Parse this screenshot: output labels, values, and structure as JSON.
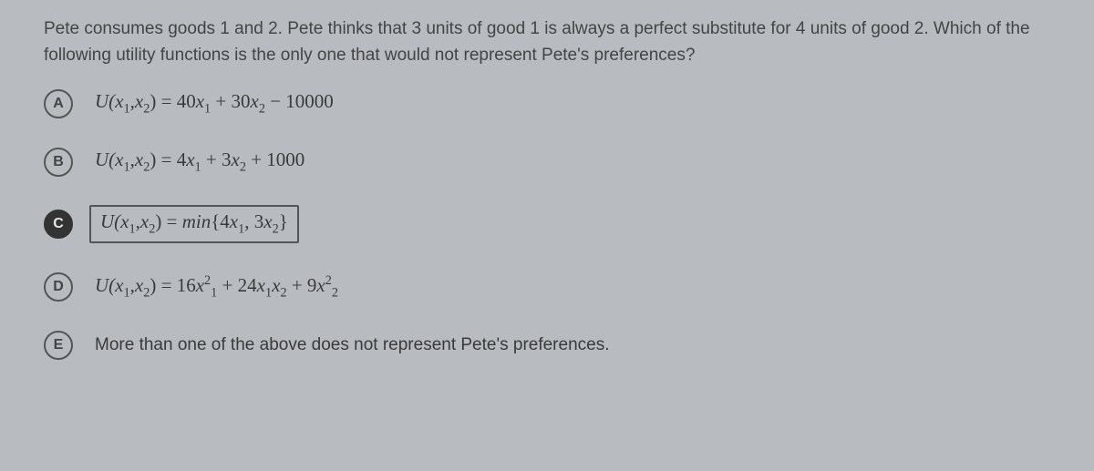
{
  "question": "Pete consumes goods 1 and 2. Pete thinks that 3 units of good 1 is always a perfect substitute for 4 units of good 2. Which of the following utility functions is the only one that would not represent Pete's preferences?",
  "options": {
    "a": {
      "letter": "A",
      "selected": false,
      "boxed": false,
      "func_lhs": "U(x",
      "eq": ") = ",
      "coef1": "40",
      "sign1": "+ ",
      "coef2": "30",
      "tail": " − 10000",
      "sub1": "1",
      "sub2": "2",
      "x": "x"
    },
    "b": {
      "letter": "B",
      "selected": false,
      "boxed": false,
      "func_lhs": "U(x",
      "eq": ") = ",
      "coef1": "4",
      "sign1": "+ ",
      "coef2": "3",
      "tail": " + 1000",
      "sub1": "1",
      "sub2": "2",
      "x": "x"
    },
    "c": {
      "letter": "C",
      "selected": true,
      "boxed": true,
      "func_lhs": "U(x",
      "eq": ") = ",
      "min": "min",
      "lbrace": "{",
      "coef1": "4",
      "comma": ", ",
      "coef2": "3",
      "rbrace": "}",
      "sub1": "1",
      "sub2": "2",
      "x": "x"
    },
    "d": {
      "letter": "D",
      "selected": false,
      "boxed": false,
      "func_lhs": "U(x",
      "eq": ") = ",
      "coef1": "16",
      "sq1": "2",
      "sign1": "+ ",
      "coef2": "24",
      "sign2": "+ ",
      "coef3": "9",
      "sq2": "2",
      "sub1": "1",
      "sub2": "2",
      "x": "x"
    },
    "e": {
      "letter": "E",
      "selected": false,
      "boxed": false,
      "text": "More than one of the above does not represent Pete's preferences."
    }
  }
}
